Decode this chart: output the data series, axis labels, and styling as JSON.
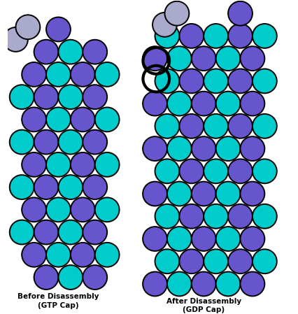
{
  "purple": "#6655cc",
  "cyan": "#00cccc",
  "gray": "#aaaacc",
  "black": "#000000",
  "red_arrow": "#cc0000",
  "background": "#ffffff",
  "text_color": "#000000",
  "label1": "Before Disassembly\n(GTP Cap)",
  "label2": "After Disassembly\n(GDP Cap)",
  "fig_width": 4.26,
  "fig_height": 4.49,
  "dpi": 100,
  "r": 0.92,
  "xlim": [
    0,
    21.3
  ],
  "ylim": [
    0,
    22.45
  ]
}
